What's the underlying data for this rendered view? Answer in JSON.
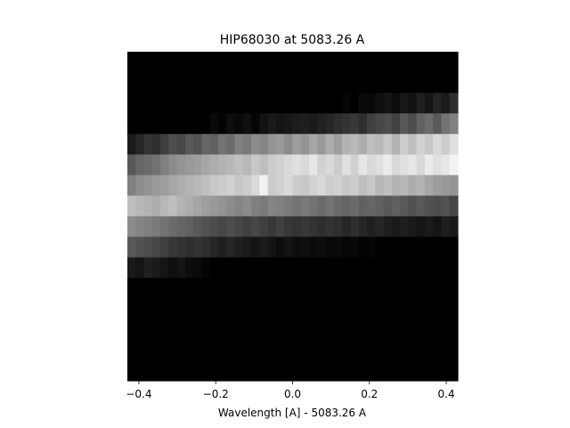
{
  "chart_data": {
    "type": "heatmap",
    "title": "HIP68030 at 5083.26 A",
    "xlabel": "Wavelength [A] - 5083.26 A",
    "ylabel": "",
    "xlim": [
      -0.43,
      0.43
    ],
    "x_ticks": [
      -0.4,
      -0.2,
      0.0,
      0.2,
      0.4
    ],
    "x_tick_labels": [
      "−0.4",
      "−0.2",
      "0.0",
      "0.2",
      "0.4"
    ],
    "y_axis_visible": false,
    "grid": false,
    "colormap": "grayscale",
    "value_range": [
      0,
      1
    ],
    "columns": 40,
    "rows": 16,
    "values": [
      [
        0,
        0,
        0,
        0,
        0,
        0,
        0,
        0,
        0,
        0,
        0,
        0,
        0,
        0,
        0,
        0,
        0,
        0,
        0,
        0,
        0,
        0,
        0,
        0,
        0,
        0,
        0,
        0,
        0,
        0,
        0,
        0,
        0,
        0,
        0,
        0,
        0,
        0,
        0,
        0
      ],
      [
        0,
        0,
        0,
        0,
        0,
        0,
        0,
        0,
        0,
        0,
        0,
        0,
        0,
        0,
        0,
        0,
        0,
        0,
        0,
        0,
        0,
        0,
        0,
        0,
        0,
        0,
        0,
        0,
        0,
        0,
        0,
        0,
        0,
        0,
        0,
        0,
        0,
        0,
        0,
        0
      ],
      [
        0,
        0,
        0,
        0,
        0,
        0,
        0,
        0,
        0,
        0,
        0,
        0,
        0,
        0,
        0,
        0,
        0,
        0,
        0,
        0,
        0,
        0,
        0,
        0,
        0,
        0,
        0.02,
        0,
        0.04,
        0.03,
        0.06,
        0.08,
        0.05,
        0.09,
        0.07,
        0.12,
        0.08,
        0.14,
        0.1,
        0.18
      ],
      [
        0,
        0,
        0,
        0,
        0,
        0,
        0,
        0,
        0,
        0,
        0.04,
        0.01,
        0.05,
        0.03,
        0.06,
        0.02,
        0.07,
        0.1,
        0.08,
        0.09,
        0.11,
        0.12,
        0.1,
        0.13,
        0.15,
        0.18,
        0.2,
        0.22,
        0.18,
        0.25,
        0.28,
        0.3,
        0.26,
        0.35,
        0.3,
        0.38,
        0.42,
        0.35,
        0.45,
        0.5
      ],
      [
        0.1,
        0.15,
        0.2,
        0.18,
        0.25,
        0.3,
        0.28,
        0.35,
        0.32,
        0.4,
        0.38,
        0.45,
        0.42,
        0.5,
        0.48,
        0.55,
        0.52,
        0.58,
        0.6,
        0.55,
        0.62,
        0.58,
        0.65,
        0.6,
        0.68,
        0.62,
        0.7,
        0.72,
        0.68,
        0.75,
        0.72,
        0.78,
        0.7,
        0.8,
        0.75,
        0.82,
        0.78,
        0.85,
        0.8,
        0.88
      ],
      [
        0.35,
        0.4,
        0.42,
        0.45,
        0.5,
        0.55,
        0.58,
        0.6,
        0.62,
        0.65,
        0.68,
        0.7,
        0.72,
        0.75,
        0.72,
        0.78,
        0.75,
        0.8,
        0.82,
        0.85,
        0.88,
        0.85,
        0.9,
        0.82,
        0.85,
        0.8,
        0.88,
        0.82,
        0.9,
        0.85,
        0.88,
        0.92,
        0.85,
        0.88,
        0.9,
        0.85,
        0.92,
        0.88,
        0.9,
        0.95
      ],
      [
        0.5,
        0.55,
        0.58,
        0.6,
        0.62,
        0.65,
        0.68,
        0.7,
        0.72,
        0.75,
        0.78,
        0.8,
        0.82,
        0.78,
        0.8,
        0.85,
        0.95,
        0.8,
        0.82,
        0.85,
        0.8,
        0.78,
        0.82,
        0.85,
        0.8,
        0.82,
        0.78,
        0.8,
        0.75,
        0.78,
        0.72,
        0.75,
        0.7,
        0.72,
        0.68,
        0.7,
        0.65,
        0.62,
        0.6,
        0.58
      ],
      [
        0.75,
        0.72,
        0.7,
        0.68,
        0.72,
        0.75,
        0.7,
        0.68,
        0.65,
        0.62,
        0.6,
        0.58,
        0.55,
        0.52,
        0.55,
        0.5,
        0.48,
        0.52,
        0.5,
        0.48,
        0.45,
        0.48,
        0.45,
        0.42,
        0.45,
        0.42,
        0.4,
        0.42,
        0.38,
        0.4,
        0.38,
        0.35,
        0.38,
        0.35,
        0.32,
        0.35,
        0.32,
        0.3,
        0.32,
        0.28
      ],
      [
        0.55,
        0.52,
        0.5,
        0.48,
        0.45,
        0.42,
        0.4,
        0.38,
        0.35,
        0.32,
        0.3,
        0.28,
        0.3,
        0.28,
        0.25,
        0.28,
        0.25,
        0.22,
        0.25,
        0.22,
        0.2,
        0.22,
        0.2,
        0.18,
        0.2,
        0.18,
        0.15,
        0.18,
        0.15,
        0.12,
        0.15,
        0.12,
        0.1,
        0.12,
        0.1,
        0.08,
        0.1,
        0.08,
        0.12,
        0.1
      ],
      [
        0.35,
        0.32,
        0.3,
        0.28,
        0.25,
        0.22,
        0.2,
        0.18,
        0.2,
        0.18,
        0.15,
        0.12,
        0.15,
        0.12,
        0.1,
        0.08,
        0.1,
        0.08,
        0.05,
        0.08,
        0.05,
        0.06,
        0.04,
        0.05,
        0.03,
        0.04,
        0.02,
        0.03,
        0.01,
        0.02,
        0,
        0,
        0,
        0,
        0,
        0,
        0,
        0,
        0,
        0
      ],
      [
        0.1,
        0.08,
        0.12,
        0.1,
        0.08,
        0.06,
        0.08,
        0.05,
        0.04,
        0.02,
        0,
        0,
        0,
        0,
        0,
        0,
        0,
        0,
        0,
        0,
        0,
        0,
        0,
        0,
        0,
        0,
        0,
        0,
        0,
        0,
        0,
        0,
        0,
        0,
        0,
        0,
        0,
        0,
        0,
        0
      ],
      [
        0,
        0,
        0,
        0,
        0,
        0,
        0,
        0,
        0,
        0,
        0,
        0,
        0,
        0,
        0,
        0,
        0,
        0,
        0,
        0,
        0,
        0,
        0,
        0,
        0,
        0,
        0,
        0,
        0,
        0,
        0,
        0,
        0,
        0,
        0,
        0,
        0,
        0,
        0,
        0
      ],
      [
        0,
        0,
        0,
        0,
        0,
        0,
        0,
        0,
        0,
        0,
        0,
        0,
        0,
        0,
        0,
        0,
        0,
        0,
        0,
        0,
        0,
        0,
        0,
        0,
        0,
        0,
        0,
        0,
        0,
        0,
        0,
        0,
        0,
        0,
        0,
        0,
        0,
        0,
        0,
        0
      ],
      [
        0,
        0,
        0,
        0,
        0,
        0,
        0,
        0,
        0,
        0,
        0,
        0,
        0,
        0,
        0,
        0,
        0,
        0,
        0,
        0,
        0,
        0,
        0,
        0,
        0,
        0,
        0,
        0,
        0,
        0,
        0,
        0,
        0,
        0,
        0,
        0,
        0,
        0,
        0,
        0
      ],
      [
        0,
        0,
        0,
        0,
        0,
        0,
        0,
        0,
        0,
        0,
        0,
        0,
        0,
        0,
        0,
        0,
        0,
        0,
        0,
        0,
        0,
        0,
        0,
        0,
        0,
        0,
        0,
        0,
        0,
        0,
        0,
        0,
        0,
        0,
        0,
        0,
        0,
        0,
        0,
        0
      ],
      [
        0,
        0,
        0,
        0,
        0,
        0,
        0,
        0,
        0,
        0,
        0,
        0,
        0,
        0,
        0,
        0,
        0,
        0,
        0,
        0,
        0,
        0,
        0,
        0,
        0,
        0,
        0,
        0,
        0,
        0,
        0,
        0,
        0,
        0,
        0,
        0,
        0,
        0,
        0,
        0
      ]
    ]
  }
}
